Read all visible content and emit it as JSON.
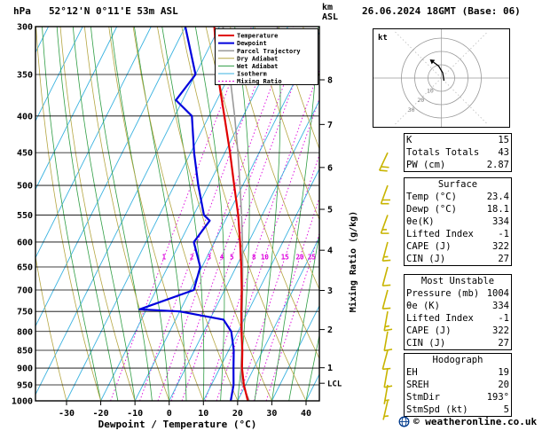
{
  "chart_data": {
    "type": "skewt_logp_sounding",
    "station_title": "52°12'N 0°11'E 53m ASL",
    "datetime_title": "26.06.2024 18GMT (Base: 06)",
    "pressure_axis_label": "hPa",
    "pressure_ticks_hPa": [
      300,
      350,
      400,
      450,
      500,
      550,
      600,
      650,
      700,
      750,
      800,
      850,
      900,
      950,
      1000
    ],
    "temp_ticks_C": [
      -30,
      -20,
      -10,
      0,
      10,
      20,
      30,
      40
    ],
    "xlabel": "Dewpoint / Temperature (°C)",
    "altitude_axis_label": "km ASL",
    "altitude_label_lines": [
      "km",
      "ASL"
    ],
    "altitude_ticks_km": [
      1,
      2,
      3,
      4,
      5,
      6,
      7,
      8
    ],
    "altitude_tick_pressures_hPa": [
      899,
      795,
      701,
      616,
      540,
      472,
      411,
      356
    ],
    "lcl_label": "LCL",
    "lcl_pressure_hPa": 945,
    "mixing_ratio_axis_label": "Mixing Ratio (g/kg)",
    "mixing_ratio_values_gkg": [
      1,
      2,
      3,
      4,
      5,
      8,
      10,
      15,
      20,
      25
    ],
    "legend": [
      {
        "label": "Temperature",
        "color": "#e00000",
        "width": 2,
        "dash": ""
      },
      {
        "label": "Dewpoint",
        "color": "#0000dd",
        "width": 2,
        "dash": ""
      },
      {
        "label": "Parcel Trajectory",
        "color": "#9a9a9a",
        "width": 1.5,
        "dash": ""
      },
      {
        "label": "Dry Adiabat",
        "color": "#b5a642",
        "width": 1,
        "dash": ""
      },
      {
        "label": "Wet Adiabat",
        "color": "#2f9e44",
        "width": 1,
        "dash": ""
      },
      {
        "label": "Isotherm",
        "color": "#3bb3e0",
        "width": 1,
        "dash": ""
      },
      {
        "label": "Mixing Ratio",
        "color": "#dd00dd",
        "width": 1,
        "dash": "2,2"
      }
    ],
    "colors": {
      "temperature": "#e00000",
      "dewpoint": "#0000dd",
      "parcel": "#9a9a9a",
      "dry_adiabat": "#b5a642",
      "wet_adiabat": "#2f9e44",
      "isotherm": "#3bb3e0",
      "mixing_ratio": "#dd00dd",
      "grid": "#000000",
      "wind_barb": "#c8b400"
    },
    "temperature_profile_p_T": [
      [
        1000,
        23.0
      ],
      [
        950,
        19.5
      ],
      [
        900,
        16.5
      ],
      [
        850,
        14.0
      ],
      [
        800,
        11.0
      ],
      [
        750,
        8.0
      ],
      [
        700,
        5.0
      ],
      [
        650,
        1.5
      ],
      [
        600,
        -2.5
      ],
      [
        550,
        -7.0
      ],
      [
        500,
        -12.5
      ],
      [
        450,
        -18.5
      ],
      [
        400,
        -25.5
      ],
      [
        350,
        -33.5
      ],
      [
        300,
        -41.5
      ]
    ],
    "dewpoint_profile_p_Td": [
      [
        1000,
        18.0
      ],
      [
        950,
        16.5
      ],
      [
        900,
        14.0
      ],
      [
        850,
        11.5
      ],
      [
        800,
        8.0
      ],
      [
        770,
        4.0
      ],
      [
        750,
        -10.0
      ],
      [
        745,
        -22.0
      ],
      [
        700,
        -9.0
      ],
      [
        650,
        -10.5
      ],
      [
        600,
        -16.0
      ],
      [
        560,
        -14.5
      ],
      [
        550,
        -17.0
      ],
      [
        500,
        -23.0
      ],
      [
        450,
        -29.0
      ],
      [
        400,
        -35.0
      ],
      [
        380,
        -42.0
      ],
      [
        350,
        -40.0
      ],
      [
        300,
        -50.0
      ]
    ],
    "parcel_profile_p_T": [
      [
        1000,
        23.4
      ],
      [
        940,
        18.3
      ],
      [
        900,
        16.2
      ],
      [
        850,
        13.8
      ],
      [
        800,
        11.2
      ],
      [
        750,
        8.3
      ],
      [
        700,
        5.2
      ],
      [
        650,
        1.9
      ],
      [
        600,
        -1.8
      ],
      [
        550,
        -6.0
      ],
      [
        500,
        -10.8
      ],
      [
        450,
        -16.2
      ],
      [
        400,
        -22.5
      ],
      [
        350,
        -30.0
      ],
      [
        300,
        -39.0
      ]
    ],
    "wind_barbs": [
      {
        "p": 450,
        "speed_kt": 20,
        "dir_deg": 205
      },
      {
        "p": 500,
        "speed_kt": 20,
        "dir_deg": 200
      },
      {
        "p": 550,
        "speed_kt": 15,
        "dir_deg": 200
      },
      {
        "p": 600,
        "speed_kt": 15,
        "dir_deg": 195
      },
      {
        "p": 650,
        "speed_kt": 10,
        "dir_deg": 195
      },
      {
        "p": 700,
        "speed_kt": 10,
        "dir_deg": 195
      },
      {
        "p": 750,
        "speed_kt": 15,
        "dir_deg": 190
      },
      {
        "p": 800,
        "speed_kt": 10,
        "dir_deg": 190
      },
      {
        "p": 850,
        "speed_kt": 10,
        "dir_deg": 195
      },
      {
        "p": 900,
        "speed_kt": 10,
        "dir_deg": 190
      },
      {
        "p": 950,
        "speed_kt": 5,
        "dir_deg": 190
      },
      {
        "p": 1000,
        "speed_kt": 5,
        "dir_deg": 193
      }
    ]
  },
  "hodograph": {
    "unit_label": "kt",
    "ring_radii_kt": [
      10,
      20,
      30
    ],
    "ring_labels": [
      "10",
      "20",
      "30"
    ],
    "trace_uv_kt": [
      [
        2,
        -2
      ],
      [
        1,
        4
      ],
      [
        -2,
        9
      ],
      [
        -6,
        12
      ]
    ]
  },
  "info_tables": [
    {
      "header": "",
      "rows": [
        [
          "K",
          "15"
        ],
        [
          "Totals Totals",
          "43"
        ],
        [
          "PW (cm)",
          "2.87"
        ]
      ]
    },
    {
      "header": "Surface",
      "rows": [
        [
          "Temp (°C)",
          "23.4"
        ],
        [
          "Dewp (°C)",
          "18.1"
        ],
        [
          "θe(K)",
          "334"
        ],
        [
          "Lifted Index",
          "-1"
        ],
        [
          "CAPE (J)",
          "322"
        ],
        [
          "CIN (J)",
          "27"
        ]
      ]
    },
    {
      "header": "Most Unstable",
      "rows": [
        [
          "Pressure (mb)",
          "1004"
        ],
        [
          "θe (K)",
          "334"
        ],
        [
          "Lifted Index",
          "-1"
        ],
        [
          "CAPE (J)",
          "322"
        ],
        [
          "CIN (J)",
          "27"
        ]
      ]
    },
    {
      "header": "Hodograph",
      "rows": [
        [
          "EH",
          "19"
        ],
        [
          "SREH",
          "20"
        ],
        [
          "StmDir",
          "193°"
        ],
        [
          "StmSpd (kt)",
          "5"
        ]
      ]
    }
  ],
  "footer": {
    "credit": "© weatheronline.co.uk"
  }
}
